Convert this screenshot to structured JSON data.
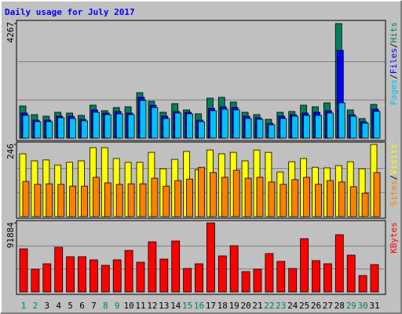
{
  "chart_data": [
    {
      "type": "bar",
      "title": "Daily usage for July 2017",
      "separator": "/",
      "ylim": [
        0,
        4267
      ],
      "yticks": [
        4267
      ],
      "series": [
        {
          "name": "Hits",
          "color": "#00805c",
          "values": [
            1198,
            877,
            818,
            965,
            935,
            848,
            1228,
            1023,
            1140,
            1169,
            1695,
            1374,
            965,
            1286,
            1052,
            906,
            1491,
            1520,
            1344,
            965,
            877,
            701,
            965,
            994,
            1228,
            1169,
            1315,
            4267,
            1052,
            731,
            1257
          ]
        },
        {
          "name": "Files",
          "color": "#0000ff",
          "values": [
            935,
            672,
            672,
            818,
            818,
            701,
            1052,
            935,
            994,
            935,
            1520,
            1228,
            818,
            994,
            964,
            672,
            1110,
            1169,
            1140,
            818,
            760,
            555,
            818,
            877,
            935,
            964,
            1023,
            3273,
            877,
            614,
            1081
          ]
        },
        {
          "name": "Pages",
          "color": "#00c0ff",
          "values": [
            848,
            614,
            614,
            760,
            731,
            643,
            964,
            877,
            906,
            877,
            1403,
            1140,
            731,
            935,
            906,
            614,
            1023,
            1081,
            1052,
            731,
            701,
            497,
            731,
            818,
            848,
            848,
            935,
            1315,
            818,
            555,
            994
          ]
        }
      ]
    },
    {
      "type": "bar",
      "ylim": [
        0,
        246
      ],
      "yticks": [
        246
      ],
      "series": [
        {
          "name": "Visits",
          "color": "#ffff00",
          "values": [
            214,
            190,
            193,
            176,
            185,
            190,
            235,
            235,
            198,
            185,
            185,
            219,
            163,
            195,
            222,
            160,
            227,
            214,
            219,
            190,
            227,
            219,
            152,
            187,
            198,
            168,
            166,
            174,
            187,
            163,
            246
          ]
        },
        {
          "name": "Sites",
          "color": "#ff8000",
          "values": [
            120,
            110,
            112,
            110,
            104,
            104,
            134,
            115,
            110,
            112,
            112,
            131,
            104,
            123,
            128,
            168,
            150,
            134,
            158,
            131,
            134,
            118,
            110,
            126,
            134,
            110,
            123,
            118,
            102,
            80,
            150
          ]
        }
      ]
    },
    {
      "type": "bar",
      "ylim": [
        0,
        91884
      ],
      "yticks": [
        91884
      ],
      "categories": [
        "1",
        "2",
        "3",
        "4",
        "5",
        "6",
        "7",
        "8",
        "9",
        "10",
        "11",
        "12",
        "13",
        "14",
        "15",
        "16",
        "17",
        "18",
        "19",
        "20",
        "21",
        "22",
        "23",
        "24",
        "25",
        "26",
        "27",
        "28",
        "29",
        "30",
        "31"
      ],
      "category_colors": [
        "#00805c",
        "#00805c",
        "#000000",
        "#000000",
        "#000000",
        "#000000",
        "#000000",
        "#00805c",
        "#00805c",
        "#000000",
        "#000000",
        "#000000",
        "#000000",
        "#000000",
        "#00805c",
        "#00805c",
        "#000000",
        "#000000",
        "#000000",
        "#000000",
        "#000000",
        "#00805c",
        "#00805c",
        "#000000",
        "#000000",
        "#000000",
        "#000000",
        "#000000",
        "#00805c",
        "#00805c",
        "#000000"
      ],
      "series": [
        {
          "name": "KBytes",
          "color": "#ff0000",
          "values": [
            57420,
            30280,
            37580,
            59510,
            46980,
            46980,
            42800,
            35500,
            42800,
            55330,
            39670,
            66820,
            43850,
            67860,
            31320,
            37580,
            91884,
            48020,
            61590,
            27140,
            30280,
            51150,
            40720,
            31320,
            70990,
            41760,
            37580,
            76210,
            49070,
            21920,
            36540
          ]
        }
      ]
    }
  ]
}
